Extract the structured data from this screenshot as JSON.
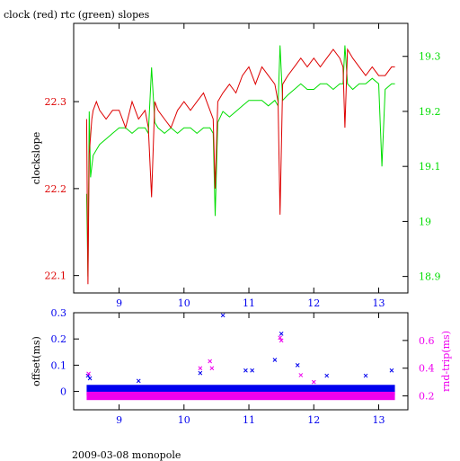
{
  "title": "clock (red) rtc (green) slopes",
  "footer": "2009-03-08 monopole",
  "colors": {
    "red": "#dd0000",
    "green": "#00dd00",
    "blue": "#0000ee",
    "magenta": "#ee00ee",
    "axis": "#000000"
  },
  "chart_data": [
    {
      "type": "line",
      "title": "clock (red) rtc (green) slopes",
      "ylabel": "clockslope",
      "y2label": "",
      "xlim": [
        8.3,
        13.45
      ],
      "ylim": [
        22.08,
        22.39
      ],
      "y2lim": [
        18.87,
        19.36
      ],
      "xticks": [
        9,
        10,
        11,
        12,
        13
      ],
      "yticks": [
        22.1,
        22.2,
        22.3
      ],
      "ytick_labels": [
        "22.1",
        "22.2",
        "22.3"
      ],
      "y2ticks": [
        18.9,
        19,
        19.1,
        19.2,
        19.3
      ],
      "y2tick_labels": [
        "18.9",
        "19",
        "19.1",
        "19.2",
        "19.3"
      ],
      "grid": false,
      "series": [
        {
          "name": "clock",
          "axis": "left",
          "color": "#dd0000",
          "x": [
            8.5,
            8.52,
            8.54,
            8.56,
            8.58,
            8.6,
            8.65,
            8.7,
            8.8,
            8.9,
            9.0,
            9.1,
            9.2,
            9.3,
            9.4,
            9.45,
            9.5,
            9.55,
            9.6,
            9.7,
            9.8,
            9.9,
            10.0,
            10.1,
            10.2,
            10.3,
            10.4,
            10.45,
            10.48,
            10.52,
            10.6,
            10.7,
            10.8,
            10.9,
            11.0,
            11.1,
            11.2,
            11.3,
            11.4,
            11.45,
            11.48,
            11.52,
            11.6,
            11.7,
            11.8,
            11.9,
            12.0,
            12.1,
            12.2,
            12.3,
            12.4,
            12.45,
            12.48,
            12.52,
            12.6,
            12.7,
            12.8,
            12.9,
            13.0,
            13.1,
            13.2,
            13.25
          ],
          "y": [
            22.28,
            22.09,
            22.24,
            22.26,
            22.28,
            22.29,
            22.3,
            22.29,
            22.28,
            22.29,
            22.29,
            22.27,
            22.3,
            22.28,
            22.29,
            22.27,
            22.19,
            22.3,
            22.29,
            22.28,
            22.27,
            22.29,
            22.3,
            22.29,
            22.3,
            22.31,
            22.29,
            22.28,
            22.2,
            22.3,
            22.31,
            22.32,
            22.31,
            22.33,
            22.34,
            22.32,
            22.34,
            22.33,
            22.32,
            22.3,
            22.17,
            22.32,
            22.33,
            22.34,
            22.35,
            22.34,
            22.35,
            22.34,
            22.35,
            22.36,
            22.35,
            22.34,
            22.27,
            22.36,
            22.35,
            22.34,
            22.33,
            22.34,
            22.33,
            22.33,
            22.34,
            22.34
          ]
        },
        {
          "name": "rtc",
          "axis": "right",
          "color": "#00dd00",
          "x": [
            8.5,
            8.52,
            8.54,
            8.56,
            8.58,
            8.6,
            8.65,
            8.7,
            8.8,
            8.9,
            9.0,
            9.1,
            9.2,
            9.3,
            9.4,
            9.45,
            9.5,
            9.55,
            9.6,
            9.7,
            9.8,
            9.9,
            10.0,
            10.1,
            10.2,
            10.3,
            10.4,
            10.45,
            10.48,
            10.52,
            10.6,
            10.7,
            10.8,
            10.9,
            11.0,
            11.1,
            11.2,
            11.3,
            11.4,
            11.45,
            11.48,
            11.52,
            11.6,
            11.7,
            11.8,
            11.9,
            12.0,
            12.1,
            12.2,
            12.3,
            12.4,
            12.45,
            12.48,
            12.52,
            12.6,
            12.7,
            12.8,
            12.9,
            13.0,
            13.05,
            13.1,
            13.2,
            13.25
          ],
          "y": [
            19.05,
            18.9,
            19.2,
            19.08,
            19.1,
            19.12,
            19.13,
            19.14,
            19.15,
            19.16,
            19.17,
            19.17,
            19.16,
            19.17,
            19.17,
            19.16,
            19.28,
            19.18,
            19.17,
            19.16,
            19.17,
            19.16,
            19.17,
            19.17,
            19.16,
            19.17,
            19.17,
            19.16,
            19.01,
            19.18,
            19.2,
            19.19,
            19.2,
            19.21,
            19.22,
            19.22,
            19.22,
            19.21,
            19.22,
            19.21,
            19.32,
            19.22,
            19.23,
            19.24,
            19.25,
            19.24,
            19.24,
            19.25,
            19.25,
            19.24,
            19.25,
            19.25,
            19.32,
            19.25,
            19.24,
            19.25,
            19.25,
            19.26,
            19.25,
            19.1,
            19.24,
            19.25,
            19.25
          ]
        }
      ]
    },
    {
      "type": "scatter",
      "ylabel": "offset(ms)",
      "y2label": "rnd-trip(ms)",
      "xlim": [
        8.3,
        13.45
      ],
      "ylim": [
        -0.07,
        0.3
      ],
      "y2lim": [
        0.1,
        0.8
      ],
      "xticks": [
        9,
        10,
        11,
        12,
        13
      ],
      "yticks": [
        0,
        0.1,
        0.2,
        0.3
      ],
      "ytick_labels": [
        "0",
        "0.1",
        "0.2",
        "0.3"
      ],
      "y2ticks": [
        0.2,
        0.4,
        0.6
      ],
      "y2tick_labels": [
        "0.2",
        "0.4",
        "0.6"
      ],
      "grid": false,
      "series": [
        {
          "name": "offset",
          "axis": "left",
          "color": "#0000ee",
          "band": [
            -0.015,
            0.025
          ],
          "outliers": [
            {
              "x": 8.52,
              "y": 0.06
            },
            {
              "x": 8.55,
              "y": 0.05
            },
            {
              "x": 9.3,
              "y": 0.04
            },
            {
              "x": 10.25,
              "y": 0.07
            },
            {
              "x": 10.6,
              "y": 0.29
            },
            {
              "x": 10.95,
              "y": 0.08
            },
            {
              "x": 11.05,
              "y": 0.08
            },
            {
              "x": 11.4,
              "y": 0.12
            },
            {
              "x": 11.5,
              "y": 0.22
            },
            {
              "x": 11.75,
              "y": 0.1
            },
            {
              "x": 12.2,
              "y": 0.06
            },
            {
              "x": 12.8,
              "y": 0.06
            },
            {
              "x": 13.2,
              "y": 0.08
            }
          ]
        },
        {
          "name": "rnd-trip",
          "axis": "right",
          "color": "#ee00ee",
          "band": [
            0.17,
            0.23
          ],
          "outliers": [
            {
              "x": 8.53,
              "y": 0.36
            },
            {
              "x": 10.25,
              "y": 0.4
            },
            {
              "x": 10.4,
              "y": 0.45
            },
            {
              "x": 10.43,
              "y": 0.4
            },
            {
              "x": 11.48,
              "y": 0.62
            },
            {
              "x": 11.5,
              "y": 0.6
            },
            {
              "x": 11.8,
              "y": 0.35
            },
            {
              "x": 12.0,
              "y": 0.3
            }
          ]
        }
      ]
    }
  ]
}
